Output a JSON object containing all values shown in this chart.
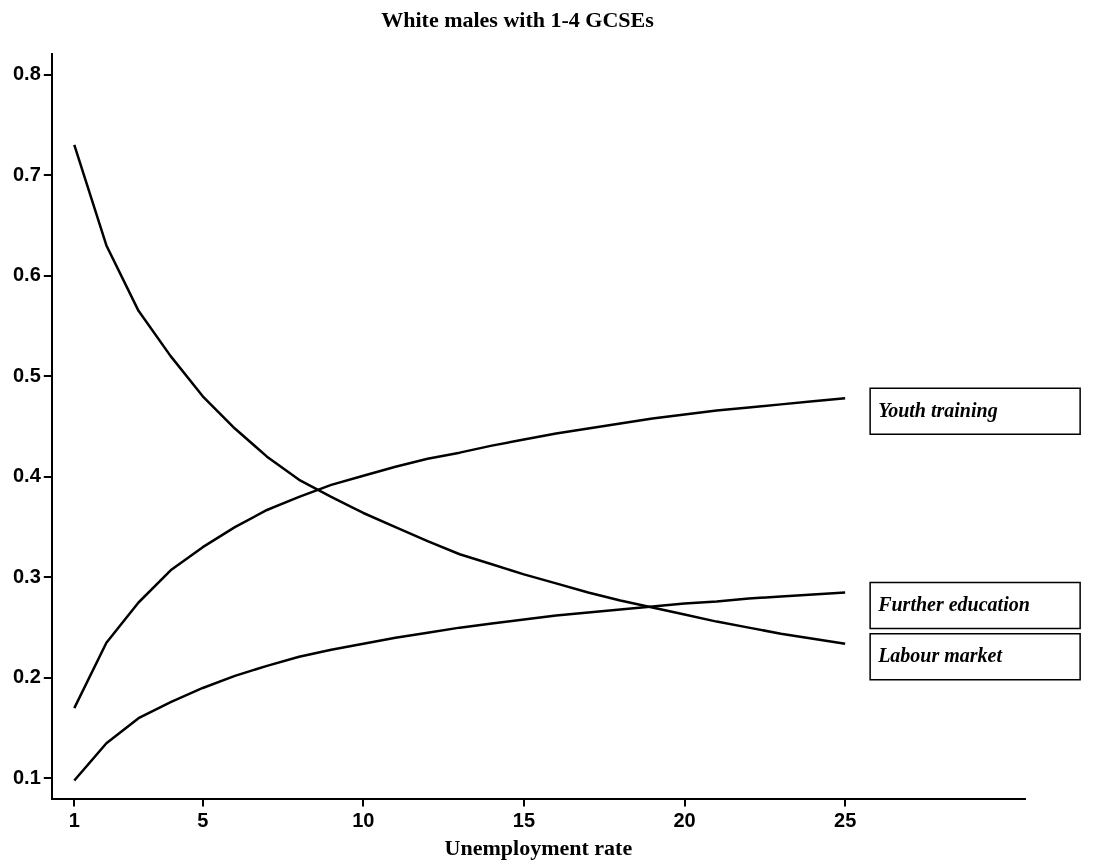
{
  "chart_data": {
    "type": "line",
    "title": "White males with 1-4 GCSEs",
    "xlabel": "Unemployment rate",
    "x": [
      1,
      2,
      3,
      4,
      5,
      6,
      7,
      8,
      9,
      10,
      11,
      12,
      13,
      14,
      15,
      16,
      17,
      18,
      19,
      20,
      21,
      22,
      23,
      24,
      25
    ],
    "series": [
      {
        "name": "Youth training",
        "color": "#000000",
        "values": [
          0.17,
          0.235,
          0.275,
          0.307,
          0.33,
          0.35,
          0.367,
          0.38,
          0.392,
          0.401,
          0.41,
          0.418,
          0.424,
          0.431,
          0.437,
          0.443,
          0.448,
          0.453,
          0.458,
          0.462,
          0.466,
          0.469,
          0.472,
          0.475,
          0.478
        ]
      },
      {
        "name": "Further education",
        "color": "#000000",
        "values": [
          0.098,
          0.135,
          0.16,
          0.176,
          0.19,
          0.202,
          0.212,
          0.221,
          0.228,
          0.234,
          0.24,
          0.245,
          0.25,
          0.254,
          0.258,
          0.262,
          0.265,
          0.268,
          0.271,
          0.274,
          0.276,
          0.279,
          0.281,
          0.283,
          0.285
        ]
      },
      {
        "name": "Labour market",
        "color": "#000000",
        "values": [
          0.73,
          0.63,
          0.565,
          0.52,
          0.48,
          0.448,
          0.42,
          0.397,
          0.38,
          0.364,
          0.35,
          0.336,
          0.323,
          0.313,
          0.303,
          0.294,
          0.285,
          0.277,
          0.27,
          0.263,
          0.256,
          0.25,
          0.244,
          0.239,
          0.234
        ]
      }
    ],
    "xlim": [
      0.3,
      30.6
    ],
    "xticks": [
      1,
      5,
      10,
      15,
      20,
      25
    ],
    "ylim": [
      0.08,
      0.82
    ],
    "yticks": [
      0.1,
      0.2,
      0.3,
      0.4,
      0.5,
      0.6,
      0.7,
      0.8
    ],
    "grid": false,
    "legend": false,
    "marker": "none",
    "line_style": "solid"
  }
}
